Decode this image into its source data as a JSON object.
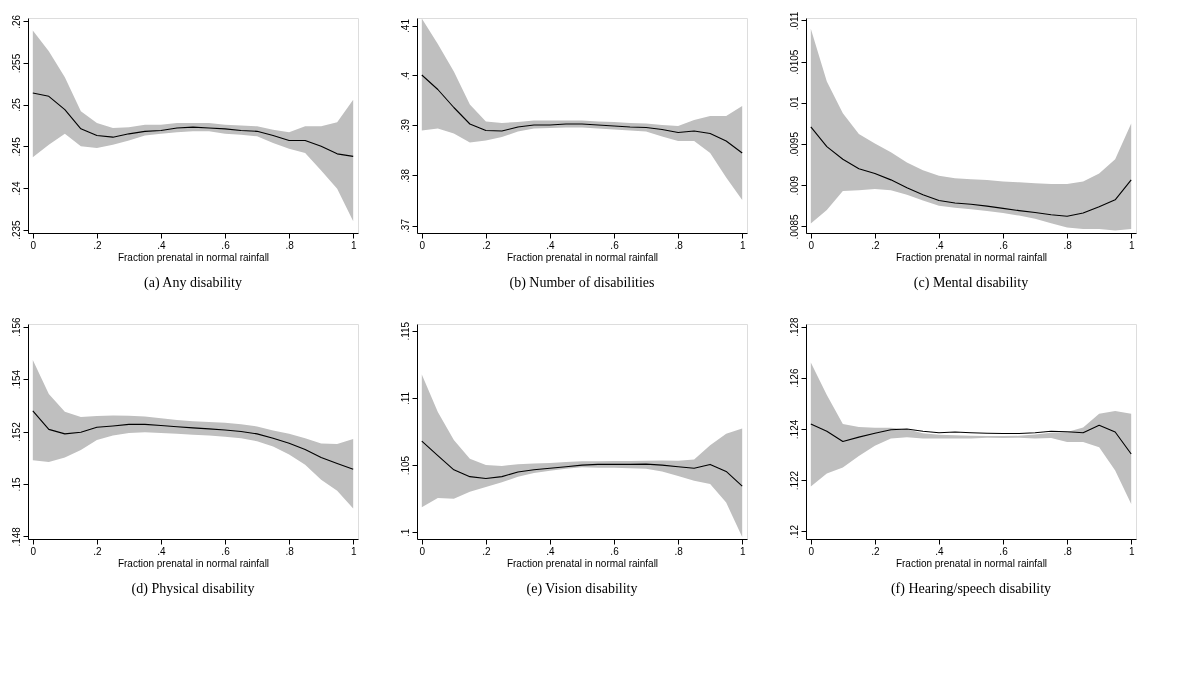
{
  "chart_data": [
    {
      "type": "line",
      "title": "(a) Any disability",
      "xlabel": "Fraction prenatal in normal rainfall",
      "grid": false,
      "legend": false,
      "marker": "none",
      "line_style": "solid",
      "xlim": [
        -0.015,
        1.015
      ],
      "xticks": [
        0,
        {
          "value": 0.2,
          "label": ".2"
        },
        {
          "value": 0.4,
          "label": ".4"
        },
        {
          "value": 0.6,
          "label": ".6"
        },
        {
          "value": 0.8,
          "label": ".8"
        },
        1
      ],
      "ylim": [
        0.2346,
        0.2604
      ],
      "yticks": [
        {
          "value": 0.235,
          "label": ".235"
        },
        {
          "value": 0.24,
          "label": ".24"
        },
        {
          "value": 0.245,
          "label": ".245"
        },
        {
          "value": 0.25,
          "label": ".25"
        },
        {
          "value": 0.255,
          "label": ".255"
        },
        {
          "value": 0.26,
          "label": ".26"
        }
      ],
      "x": [
        0,
        0.05,
        0.1,
        0.15,
        0.2,
        0.25,
        0.3,
        0.35,
        0.4,
        0.45,
        0.5,
        0.55,
        0.6,
        0.65,
        0.7,
        0.75,
        0.8,
        0.85,
        0.9,
        0.95,
        1
      ],
      "series": [
        {
          "color": "#000000",
          "values": [
            0.2514,
            0.251,
            0.2494,
            0.2471,
            0.2463,
            0.2461,
            0.2465,
            0.2468,
            0.2469,
            0.2472,
            0.2473,
            0.2472,
            0.2471,
            0.2469,
            0.2468,
            0.2463,
            0.2457,
            0.2457,
            0.245,
            0.2441,
            0.2438
          ],
          "upper": [
            0.2589,
            0.2564,
            0.2533,
            0.2492,
            0.2478,
            0.2472,
            0.2473,
            0.2476,
            0.2476,
            0.2478,
            0.2478,
            0.2478,
            0.2476,
            0.2475,
            0.2474,
            0.247,
            0.2467,
            0.2474,
            0.2474,
            0.2479,
            0.2506
          ],
          "lower": [
            0.2437,
            0.2452,
            0.2465,
            0.245,
            0.2448,
            0.2452,
            0.2457,
            0.2463,
            0.2465,
            0.2467,
            0.2468,
            0.2468,
            0.2465,
            0.2464,
            0.2462,
            0.2454,
            0.2447,
            0.2442,
            0.2421,
            0.2399,
            0.236
          ]
        }
      ]
    },
    {
      "type": "line",
      "title": "(b) Number of disabilities",
      "xlabel": "Fraction prenatal in normal rainfall",
      "grid": false,
      "legend": false,
      "marker": "none",
      "line_style": "solid",
      "xlim": [
        -0.015,
        1.015
      ],
      "xticks": [
        0,
        {
          "value": 0.2,
          "label": ".2"
        },
        {
          "value": 0.4,
          "label": ".4"
        },
        {
          "value": 0.6,
          "label": ".6"
        },
        {
          "value": 0.8,
          "label": ".8"
        },
        1
      ],
      "ylim": [
        0.3685,
        0.4115
      ],
      "yticks": [
        {
          "value": 0.37,
          "label": ".37"
        },
        {
          "value": 0.38,
          "label": ".38"
        },
        {
          "value": 0.39,
          "label": ".39"
        },
        {
          "value": 0.4,
          "label": ".4"
        },
        {
          "value": 0.41,
          "label": ".41"
        }
      ],
      "x": [
        0,
        0.05,
        0.1,
        0.15,
        0.2,
        0.25,
        0.3,
        0.35,
        0.4,
        0.45,
        0.5,
        0.55,
        0.6,
        0.65,
        0.7,
        0.75,
        0.8,
        0.85,
        0.9,
        0.95,
        1
      ],
      "series": [
        {
          "color": "#000000",
          "values": [
            0.4001,
            0.3972,
            0.3936,
            0.3903,
            0.389,
            0.3889,
            0.3897,
            0.3901,
            0.3901,
            0.3903,
            0.3903,
            0.3901,
            0.3899,
            0.3897,
            0.3896,
            0.3892,
            0.3886,
            0.3889,
            0.3884,
            0.3869,
            0.3845
          ],
          "upper": [
            0.4114,
            0.4063,
            0.4008,
            0.3942,
            0.3908,
            0.3905,
            0.3907,
            0.391,
            0.391,
            0.391,
            0.391,
            0.3908,
            0.3907,
            0.3905,
            0.3904,
            0.3901,
            0.3899,
            0.3911,
            0.3919,
            0.3919,
            0.3939
          ],
          "lower": [
            0.389,
            0.3894,
            0.3884,
            0.3866,
            0.387,
            0.3877,
            0.3888,
            0.3894,
            0.3895,
            0.3896,
            0.3896,
            0.3894,
            0.3892,
            0.389,
            0.3888,
            0.3878,
            0.3869,
            0.3869,
            0.3845,
            0.3796,
            0.3751
          ]
        }
      ]
    },
    {
      "type": "line",
      "title": "(c) Mental disability",
      "xlabel": "Fraction prenatal in normal rainfall",
      "grid": false,
      "legend": false,
      "marker": "none",
      "line_style": "solid",
      "xlim": [
        -0.015,
        1.015
      ],
      "xticks": [
        0,
        {
          "value": 0.2,
          "label": ".2"
        },
        {
          "value": 0.4,
          "label": ".4"
        },
        {
          "value": 0.6,
          "label": ".6"
        },
        {
          "value": 0.8,
          "label": ".8"
        },
        1
      ],
      "ylim": [
        0.00842,
        0.01103
      ],
      "yticks": [
        {
          "value": 0.0085,
          "label": ".0085"
        },
        {
          "value": 0.009,
          "label": ".009"
        },
        {
          "value": 0.0095,
          "label": ".0095"
        },
        {
          "value": 0.01,
          "label": ".01"
        },
        {
          "value": 0.0105,
          "label": ".0105"
        },
        {
          "value": 0.011,
          "label": ".011"
        }
      ],
      "x": [
        0,
        0.05,
        0.1,
        0.15,
        0.2,
        0.25,
        0.3,
        0.35,
        0.4,
        0.45,
        0.5,
        0.55,
        0.6,
        0.65,
        0.7,
        0.75,
        0.8,
        0.85,
        0.9,
        0.95,
        1
      ],
      "series": [
        {
          "color": "#000000",
          "values": [
            0.009708,
            0.009469,
            0.009315,
            0.0092,
            0.009142,
            0.009065,
            0.008969,
            0.008885,
            0.008815,
            0.008785,
            0.008769,
            0.008746,
            0.008719,
            0.008692,
            0.008669,
            0.008642,
            0.008623,
            0.008662,
            0.008738,
            0.008823,
            0.009065
          ],
          "upper": [
            0.0109,
            0.01026,
            0.009873,
            0.009623,
            0.009508,
            0.0094,
            0.009277,
            0.009181,
            0.009115,
            0.009085,
            0.009073,
            0.009062,
            0.009046,
            0.009035,
            0.009023,
            0.009015,
            0.009015,
            0.009046,
            0.009142,
            0.009315,
            0.00975
          ],
          "lower": [
            0.008535,
            0.0087,
            0.008931,
            0.008938,
            0.008954,
            0.008938,
            0.008885,
            0.008815,
            0.00875,
            0.008727,
            0.008708,
            0.008688,
            0.008662,
            0.008631,
            0.008592,
            0.008538,
            0.008488,
            0.008469,
            0.008469,
            0.00845,
            0.008469
          ]
        }
      ]
    },
    {
      "type": "line",
      "title": "(d) Physical disability",
      "xlabel": "Fraction prenatal in normal rainfall",
      "grid": false,
      "legend": false,
      "marker": "none",
      "line_style": "solid",
      "xlim": [
        -0.015,
        1.015
      ],
      "xticks": [
        0,
        {
          "value": 0.2,
          "label": ".2"
        },
        {
          "value": 0.4,
          "label": ".4"
        },
        {
          "value": 0.6,
          "label": ".6"
        },
        {
          "value": 0.8,
          "label": ".8"
        },
        1
      ],
      "ylim": [
        0.1479,
        0.1561
      ],
      "yticks": [
        {
          "value": 0.148,
          "label": ".148"
        },
        {
          "value": 0.15,
          "label": ".15"
        },
        {
          "value": 0.152,
          "label": ".152"
        },
        {
          "value": 0.154,
          "label": ".154"
        },
        {
          "value": 0.156,
          "label": ".156"
        }
      ],
      "x": [
        0,
        0.05,
        0.1,
        0.15,
        0.2,
        0.25,
        0.3,
        0.35,
        0.4,
        0.45,
        0.5,
        0.55,
        0.6,
        0.65,
        0.7,
        0.75,
        0.8,
        0.85,
        0.9,
        0.95,
        1
      ],
      "series": [
        {
          "color": "#000000",
          "values": [
            0.15279,
            0.15208,
            0.15191,
            0.15197,
            0.15216,
            0.15221,
            0.15227,
            0.15227,
            0.15223,
            0.15218,
            0.15214,
            0.1521,
            0.15206,
            0.152,
            0.15191,
            0.15174,
            0.15155,
            0.15131,
            0.15101,
            0.15078,
            0.15056
          ],
          "upper": [
            0.15473,
            0.15343,
            0.15275,
            0.15255,
            0.15259,
            0.15261,
            0.1526,
            0.15257,
            0.15251,
            0.15244,
            0.15239,
            0.15236,
            0.15233,
            0.15228,
            0.15219,
            0.15204,
            0.15191,
            0.15174,
            0.15154,
            0.15152,
            0.15171
          ],
          "lower": [
            0.1509,
            0.15084,
            0.15101,
            0.15129,
            0.15168,
            0.15185,
            0.15194,
            0.15197,
            0.15194,
            0.15191,
            0.15188,
            0.15185,
            0.1518,
            0.15174,
            0.15163,
            0.15143,
            0.15112,
            0.15073,
            0.15016,
            0.14974,
            0.14906
          ]
        }
      ]
    },
    {
      "type": "line",
      "title": "(e) Vision disability",
      "xlabel": "Fraction prenatal in normal rainfall",
      "grid": false,
      "legend": false,
      "marker": "none",
      "line_style": "solid",
      "xlim": [
        -0.015,
        1.015
      ],
      "xticks": [
        0,
        {
          "value": 0.2,
          "label": ".2"
        },
        {
          "value": 0.4,
          "label": ".4"
        },
        {
          "value": 0.6,
          "label": ".6"
        },
        {
          "value": 0.8,
          "label": ".8"
        },
        1
      ],
      "ylim": [
        0.0995,
        0.1155
      ],
      "yticks": [
        {
          "value": 0.1,
          "label": ".1"
        },
        {
          "value": 0.105,
          "label": ".105"
        },
        {
          "value": 0.11,
          "label": ".11"
        },
        {
          "value": 0.115,
          "label": ".115"
        }
      ],
      "x": [
        0,
        0.05,
        0.1,
        0.15,
        0.2,
        0.25,
        0.3,
        0.35,
        0.4,
        0.45,
        0.5,
        0.55,
        0.6,
        0.65,
        0.7,
        0.75,
        0.8,
        0.85,
        0.9,
        0.95,
        1
      ],
      "series": [
        {
          "color": "#000000",
          "values": [
            0.10679,
            0.1057,
            0.10465,
            0.10414,
            0.104,
            0.10414,
            0.10449,
            0.10465,
            0.10477,
            0.10488,
            0.105,
            0.10505,
            0.10505,
            0.10505,
            0.10507,
            0.105,
            0.10488,
            0.10477,
            0.10505,
            0.10453,
            0.10344
          ],
          "upper": [
            0.11174,
            0.10895,
            0.10686,
            0.10547,
            0.105,
            0.10493,
            0.10507,
            0.10512,
            0.10516,
            0.10523,
            0.10528,
            0.10528,
            0.1053,
            0.1053,
            0.10533,
            0.10535,
            0.10533,
            0.10542,
            0.10647,
            0.10733,
            0.10772
          ],
          "lower": [
            0.10186,
            0.10256,
            0.10249,
            0.10302,
            0.10337,
            0.10372,
            0.10414,
            0.10442,
            0.10458,
            0.10472,
            0.10484,
            0.10481,
            0.10481,
            0.10477,
            0.10472,
            0.10453,
            0.10419,
            0.10384,
            0.1036,
            0.10221,
            0.09965
          ]
        }
      ]
    },
    {
      "type": "line",
      "title": "(f) Hearing/speech disability",
      "xlabel": "Fraction prenatal in normal rainfall",
      "grid": false,
      "legend": false,
      "marker": "none",
      "line_style": "solid",
      "xlim": [
        -0.015,
        1.015
      ],
      "xticks": [
        0,
        {
          "value": 0.2,
          "label": ".2"
        },
        {
          "value": 0.4,
          "label": ".4"
        },
        {
          "value": 0.6,
          "label": ".6"
        },
        {
          "value": 0.8,
          "label": ".8"
        },
        1
      ],
      "ylim": [
        0.1197,
        0.1281
      ],
      "yticks": [
        {
          "value": 0.12,
          "label": ".12"
        },
        {
          "value": 0.122,
          "label": ".122"
        },
        {
          "value": 0.124,
          "label": ".124"
        },
        {
          "value": 0.126,
          "label": ".126"
        },
        {
          "value": 0.128,
          "label": ".128"
        }
      ],
      "x": [
        0,
        0.05,
        0.1,
        0.15,
        0.2,
        0.25,
        0.3,
        0.35,
        0.4,
        0.45,
        0.5,
        0.55,
        0.6,
        0.65,
        0.7,
        0.75,
        0.8,
        0.85,
        0.9,
        0.95,
        1
      ],
      "series": [
        {
          "color": "#000000",
          "values": [
            0.12419,
            0.12391,
            0.12351,
            0.12368,
            0.12383,
            0.12397,
            0.124,
            0.12391,
            0.12385,
            0.12388,
            0.12385,
            0.12383,
            0.12382,
            0.12382,
            0.12385,
            0.12391,
            0.12389,
            0.12385,
            0.12414,
            0.12388,
            0.12302
          ],
          "upper": [
            0.1266,
            0.12533,
            0.12419,
            0.12408,
            0.12405,
            0.12405,
            0.12399,
            0.12383,
            0.12377,
            0.12375,
            0.12373,
            0.12372,
            0.12372,
            0.12373,
            0.12378,
            0.12385,
            0.12388,
            0.12406,
            0.12459,
            0.1247,
            0.12459
          ],
          "lower": [
            0.12175,
            0.12226,
            0.12249,
            0.12294,
            0.12334,
            0.12363,
            0.12368,
            0.12363,
            0.12363,
            0.12363,
            0.12363,
            0.12366,
            0.12365,
            0.12366,
            0.12363,
            0.12365,
            0.12349,
            0.12349,
            0.12328,
            0.12238,
            0.12107
          ]
        }
      ]
    }
  ]
}
